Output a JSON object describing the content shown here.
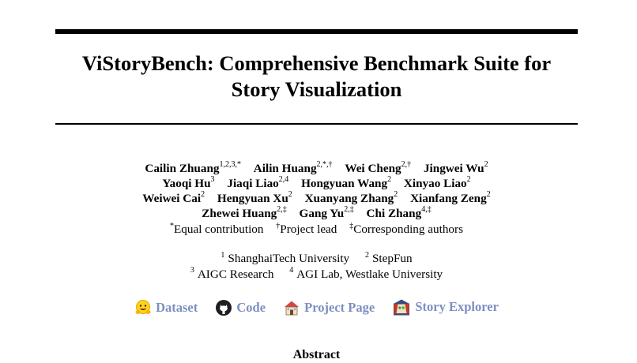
{
  "title": "ViStoryBench: Comprehensive Benchmark Suite for Story Visualization",
  "author_lines": [
    [
      {
        "name": "Cailin Zhuang",
        "sup": "1,2,3,*"
      },
      {
        "name": "Ailin Huang",
        "sup": "2,*,†"
      },
      {
        "name": "Wei Cheng",
        "sup": "2,†"
      },
      {
        "name": "Jingwei Wu",
        "sup": "2"
      }
    ],
    [
      {
        "name": "Yaoqi Hu",
        "sup": "3"
      },
      {
        "name": "Jiaqi Liao",
        "sup": "2,4"
      },
      {
        "name": "Hongyuan Wang",
        "sup": "2"
      },
      {
        "name": "Xinyao Liao",
        "sup": "2"
      }
    ],
    [
      {
        "name": "Weiwei Cai",
        "sup": "2"
      },
      {
        "name": "Hengyuan Xu",
        "sup": "2"
      },
      {
        "name": "Xuanyang Zhang",
        "sup": "2"
      },
      {
        "name": "Xianfang Zeng",
        "sup": "2"
      }
    ],
    [
      {
        "name": "Zhewei Huang",
        "sup": "2,‡"
      },
      {
        "name": "Gang Yu",
        "sup": "2,‡"
      },
      {
        "name": "Chi Zhang",
        "sup": "4,‡"
      }
    ]
  ],
  "notes": [
    {
      "mark": "*",
      "text": "Equal contribution"
    },
    {
      "mark": "†",
      "text": "Project lead"
    },
    {
      "mark": "‡",
      "text": "Corresponding authors"
    }
  ],
  "affiliation_lines": [
    [
      {
        "num": "1",
        "name": "ShanghaiTech University"
      },
      {
        "num": "2",
        "name": "StepFun"
      }
    ],
    [
      {
        "num": "3",
        "name": "AIGC Research"
      },
      {
        "num": "4",
        "name": "AGI Lab, Westlake University"
      }
    ]
  ],
  "links": [
    {
      "label": "Dataset",
      "icon": "hugging-face-icon"
    },
    {
      "label": "Code",
      "icon": "github-icon"
    },
    {
      "label": "Project Page",
      "icon": "house-icon"
    },
    {
      "label": "Story Explorer",
      "icon": "theater-icon"
    }
  ],
  "colors": {
    "link": "#7c8fc0",
    "text": "#000000"
  },
  "abstract_heading": "Abstract"
}
